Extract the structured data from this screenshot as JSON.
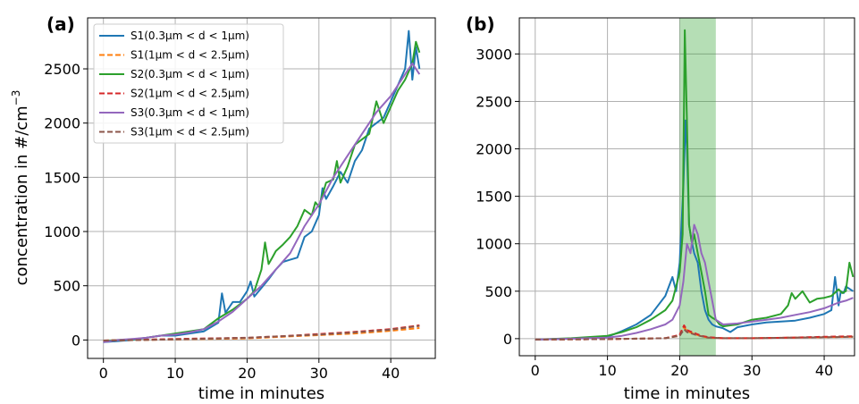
{
  "chart_data": [
    {
      "type": "line",
      "panel_label": "(a)",
      "xlabel": "time in minutes",
      "ylabel_main": "concentration in #/cm",
      "ylabel_sup": "−3",
      "xlim": [
        -2.2,
        46.2
      ],
      "ylim": [
        -170,
        2970
      ],
      "xticks": [
        0,
        10,
        20,
        30,
        40
      ],
      "yticks": [
        0,
        500,
        1000,
        1500,
        2000,
        2500
      ],
      "grid": true,
      "legend_position": "top-left",
      "series": [
        {
          "name": "S1(0.3μm < d < 1μm)",
          "color": "#1f77b4",
          "dash": "solid",
          "x": [
            0,
            2,
            4,
            6,
            8,
            10,
            12,
            14,
            16,
            16.5,
            17,
            17.5,
            18,
            19,
            20,
            20.5,
            21,
            22,
            23,
            24,
            25,
            26,
            27,
            28,
            29,
            30,
            30.5,
            31,
            32,
            33,
            34,
            35,
            36,
            37,
            38,
            39,
            40,
            41,
            42,
            42.5,
            43,
            43.5,
            44
          ],
          "y": [
            -20,
            -10,
            0,
            20,
            40,
            40,
            60,
            80,
            160,
            430,
            250,
            300,
            350,
            350,
            450,
            540,
            400,
            480,
            560,
            650,
            720,
            740,
            760,
            950,
            1000,
            1150,
            1400,
            1300,
            1420,
            1550,
            1450,
            1650,
            1750,
            1950,
            2000,
            2050,
            2200,
            2350,
            2500,
            2850,
            2400,
            2700,
            2500
          ]
        },
        {
          "name": "S1(1μm < d < 2.5μm)",
          "color": "#ff7f0e",
          "dash": "dashed",
          "x": [
            0,
            10,
            20,
            25,
            30,
            35,
            40,
            44
          ],
          "y": [
            -5,
            5,
            15,
            30,
            45,
            60,
            85,
            110
          ]
        },
        {
          "name": "S2(0.3μm < d < 1μm)",
          "color": "#2ca02c",
          "dash": "solid",
          "x": [
            0,
            2,
            4,
            6,
            8,
            10,
            12,
            14,
            16,
            18,
            20,
            21,
            22,
            22.5,
            23,
            23.5,
            24,
            25,
            26,
            27,
            28,
            29,
            29.5,
            30,
            31,
            32,
            32.5,
            33,
            34,
            35,
            36,
            37,
            38,
            39,
            40,
            41,
            42,
            43,
            43.5,
            44
          ],
          "y": [
            -10,
            0,
            5,
            20,
            40,
            60,
            80,
            100,
            200,
            280,
            380,
            450,
            650,
            900,
            700,
            760,
            820,
            880,
            950,
            1050,
            1200,
            1150,
            1270,
            1230,
            1450,
            1480,
            1650,
            1450,
            1600,
            1800,
            1850,
            1900,
            2200,
            2000,
            2150,
            2300,
            2400,
            2550,
            2750,
            2650
          ]
        },
        {
          "name": "S2(1μm < d < 2.5μm)",
          "color": "#d62728",
          "dash": "dashed",
          "x": [
            0,
            10,
            20,
            25,
            30,
            35,
            40,
            44
          ],
          "y": [
            -5,
            10,
            20,
            35,
            55,
            75,
            100,
            135
          ]
        },
        {
          "name": "S3(0.3μm < d < 1μm)",
          "color": "#9467bd",
          "dash": "solid",
          "x": [
            0,
            2,
            4,
            6,
            8,
            10,
            12,
            14,
            16,
            18,
            20,
            22,
            24,
            26,
            28,
            30,
            32,
            34,
            36,
            38,
            40,
            42,
            43,
            44
          ],
          "y": [
            -20,
            0,
            10,
            20,
            40,
            50,
            70,
            100,
            170,
            260,
            380,
            500,
            650,
            800,
            1050,
            1250,
            1500,
            1700,
            1900,
            2100,
            2250,
            2450,
            2550,
            2450
          ]
        },
        {
          "name": "S3(1μm < d < 2.5μm)",
          "color": "#8c564b",
          "dash": "dashed",
          "x": [
            0,
            10,
            20,
            25,
            30,
            35,
            40,
            44
          ],
          "y": [
            -5,
            5,
            20,
            35,
            50,
            70,
            95,
            130
          ]
        }
      ]
    },
    {
      "type": "line",
      "panel_label": "(b)",
      "xlabel": "time in minutes",
      "xlim": [
        -2.2,
        44.2
      ],
      "ylim": [
        -180,
        3380
      ],
      "xticks": [
        0,
        10,
        20,
        30,
        40
      ],
      "yticks": [
        0,
        500,
        1000,
        1500,
        2000,
        2500,
        3000
      ],
      "grid": true,
      "highlight_span": {
        "x0": 20,
        "x1": 25,
        "color": "#2ca02c",
        "opacity": 0.35
      },
      "series": [
        {
          "name": "S1(0.3μm < d < 1μm)",
          "color": "#1f77b4",
          "dash": "solid",
          "x": [
            0,
            5,
            10,
            12,
            14,
            16,
            17,
            18,
            19,
            19.5,
            20,
            20.5,
            20.8,
            21,
            21.3,
            21.6,
            22,
            22.5,
            23,
            23.5,
            24,
            24.5,
            25,
            26,
            27,
            28,
            30,
            32,
            34,
            36,
            38,
            40,
            41,
            41.5,
            42,
            42.3,
            42.7,
            43,
            44
          ],
          "y": [
            -10,
            0,
            20,
            80,
            150,
            250,
            350,
            450,
            650,
            500,
            800,
            1600,
            2300,
            2000,
            1200,
            1050,
            900,
            800,
            500,
            300,
            200,
            150,
            130,
            110,
            70,
            120,
            150,
            170,
            180,
            190,
            220,
            260,
            300,
            650,
            350,
            500,
            480,
            550,
            500
          ]
        },
        {
          "name": "S1(1μm < d < 2.5μm)",
          "color": "#ff7f0e",
          "dash": "dashed",
          "x": [
            0,
            10,
            18,
            20,
            20.6,
            21,
            22,
            23,
            24,
            26,
            30,
            35,
            40,
            44
          ],
          "y": [
            -10,
            -5,
            5,
            30,
            120,
            80,
            50,
            25,
            10,
            5,
            5,
            10,
            15,
            20
          ]
        },
        {
          "name": "S2(0.3μm < d < 1μm)",
          "color": "#2ca02c",
          "dash": "solid",
          "x": [
            0,
            5,
            10,
            12,
            14,
            16,
            18,
            19,
            19.5,
            20,
            20.4,
            20.7,
            21,
            21.3,
            21.7,
            22,
            22.5,
            23,
            23.5,
            24,
            24.5,
            25,
            25.5,
            26,
            27,
            28,
            30,
            32,
            34,
            35,
            35.5,
            36,
            37,
            38,
            39,
            40,
            41,
            42,
            42.5,
            43,
            43.5,
            44
          ],
          "y": [
            -10,
            5,
            30,
            70,
            120,
            200,
            300,
            400,
            550,
            700,
            1100,
            3250,
            2300,
            1200,
            1000,
            1100,
            900,
            700,
            500,
            250,
            220,
            200,
            150,
            130,
            140,
            150,
            200,
            220,
            260,
            350,
            480,
            420,
            500,
            380,
            420,
            430,
            450,
            520,
            480,
            500,
            800,
            650
          ]
        },
        {
          "name": "S2(1μm < d < 2.5μm)",
          "color": "#d62728",
          "dash": "dashed",
          "x": [
            0,
            10,
            18,
            20,
            20.6,
            21,
            22,
            23,
            24,
            26,
            30,
            35,
            40,
            44
          ],
          "y": [
            -10,
            -5,
            5,
            40,
            140,
            90,
            60,
            30,
            15,
            5,
            5,
            10,
            20,
            25
          ]
        },
        {
          "name": "S3(0.3μm < d < 1μm)",
          "color": "#9467bd",
          "dash": "solid",
          "x": [
            0,
            5,
            10,
            12,
            14,
            16,
            18,
            19,
            20,
            20.5,
            21,
            21.5,
            22,
            22.5,
            23,
            23.5,
            24,
            24.5,
            25,
            26,
            28,
            30,
            32,
            34,
            36,
            38,
            40,
            42,
            43,
            44
          ],
          "y": [
            -10,
            0,
            10,
            30,
            60,
            100,
            150,
            200,
            350,
            600,
            1000,
            900,
            1200,
            1100,
            900,
            800,
            600,
            400,
            200,
            150,
            160,
            180,
            200,
            220,
            250,
            280,
            320,
            380,
            400,
            430
          ]
        },
        {
          "name": "S3(1μm < d < 2.5μm)",
          "color": "#8c564b",
          "dash": "dashed",
          "x": [
            0,
            10,
            18,
            20,
            20.6,
            21,
            22,
            23,
            24,
            26,
            30,
            35,
            40,
            44
          ],
          "y": [
            -10,
            -5,
            5,
            30,
            100,
            70,
            45,
            25,
            10,
            5,
            5,
            10,
            15,
            20
          ]
        }
      ]
    }
  ]
}
